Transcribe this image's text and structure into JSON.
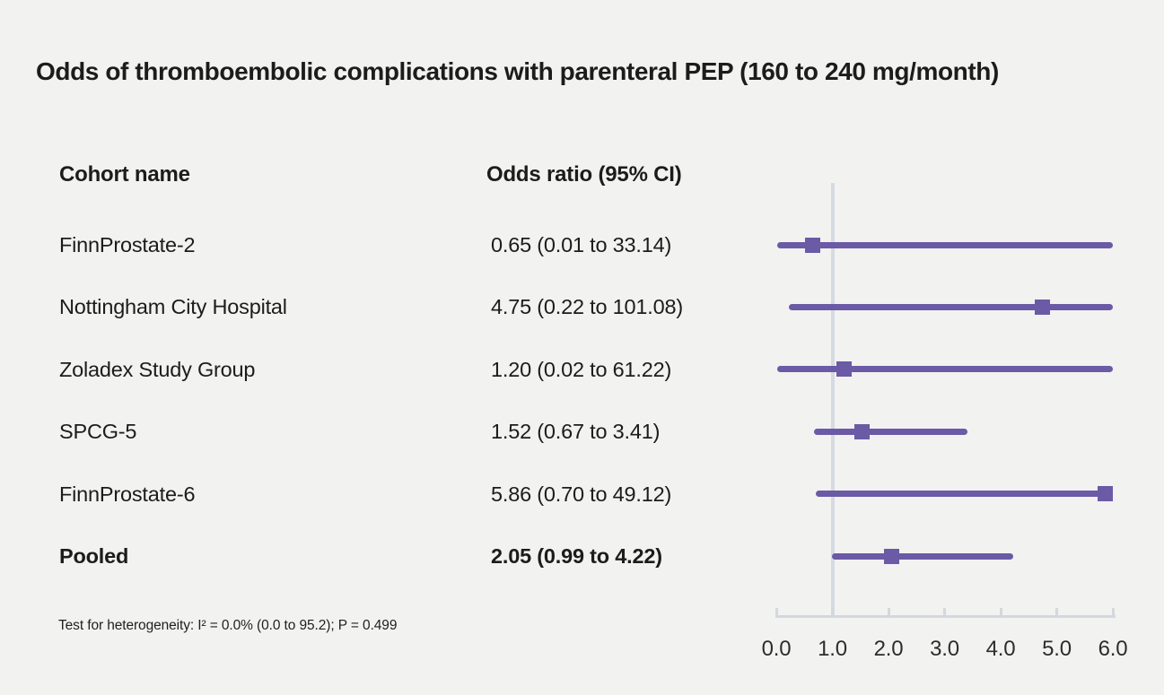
{
  "title": "Odds of thromboembolic complications with parenteral PEP (160 to 240 mg/month)",
  "table": {
    "col1_header": "Cohort name",
    "col2_header": "Odds ratio (95% CI)"
  },
  "footnote": "Test for heterogeneity: I² = 0.0% (0.0 to 95.2); P = 0.499",
  "colors": {
    "background": "#f2f2f1",
    "text": "#1c1c1c",
    "accent_purple": "#6b5aa5",
    "reference_line": "#d6dbe1",
    "axis_line": "#d2d8de"
  },
  "chart_data": {
    "type": "scatter",
    "subtype": "forest-plot",
    "title": "Odds of thromboembolic complications with parenteral PEP (160 to 240 mg/month)",
    "xlabel": "",
    "ylabel": "",
    "xlim": [
      0.0,
      6.0
    ],
    "x_tick_values": [
      0.0,
      1.0,
      2.0,
      3.0,
      4.0,
      5.0,
      6.0
    ],
    "x_tick_labels": [
      "0.0",
      "1.0",
      "2.0",
      "3.0",
      "4.0",
      "5.0",
      "6.0"
    ],
    "reference_line_x": 1.0,
    "grid": false,
    "legend": "none",
    "rows": [
      {
        "label": "FinnProstate-2",
        "odds_ratio": 0.65,
        "ci_low": 0.01,
        "ci_high": 33.14,
        "display": "0.65 (0.01 to 33.14)",
        "bold": false
      },
      {
        "label": "Nottingham City Hospital",
        "odds_ratio": 4.75,
        "ci_low": 0.22,
        "ci_high": 101.08,
        "display": "4.75 (0.22 to 101.08)",
        "bold": false
      },
      {
        "label": "Zoladex Study Group",
        "odds_ratio": 1.2,
        "ci_low": 0.02,
        "ci_high": 61.22,
        "display": "1.20 (0.02 to 61.22)",
        "bold": false
      },
      {
        "label": "SPCG-5",
        "odds_ratio": 1.52,
        "ci_low": 0.67,
        "ci_high": 3.41,
        "display": "1.52 (0.67 to 3.41)",
        "bold": false
      },
      {
        "label": "FinnProstate-6",
        "odds_ratio": 5.86,
        "ci_low": 0.7,
        "ci_high": 49.12,
        "display": "5.86 (0.70 to 49.12)",
        "bold": false
      },
      {
        "label": "Pooled",
        "odds_ratio": 2.05,
        "ci_low": 0.99,
        "ci_high": 4.22,
        "display": "2.05 (0.99 to 4.22)",
        "bold": true
      }
    ],
    "heterogeneity_note": "Test for heterogeneity: I² = 0.0% (0.0 to 95.2); P = 0.499"
  }
}
